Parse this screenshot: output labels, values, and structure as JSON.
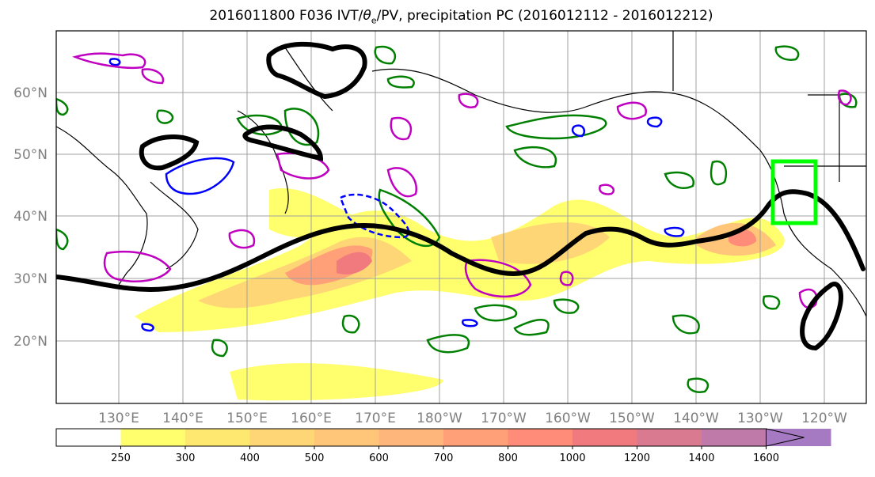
{
  "title_main": "2016011800 F036 IVT/",
  "title_theta": "θ",
  "title_sub_e": "e",
  "title_tail": "/PV, precipitation PC (2016012112 - 2016012212)",
  "lat_labels": [
    "60°N",
    "50°N",
    "40°N",
    "30°N",
    "20°N"
  ],
  "lon_labels": [
    "130°E",
    "140°E",
    "150°E",
    "160°E",
    "170°E",
    "180°W",
    "170°W",
    "160°W",
    "150°W",
    "140°W",
    "130°W",
    "120°W"
  ],
  "colorbar": {
    "ticks": [
      "250",
      "300",
      "400",
      "500",
      "600",
      "700",
      "800",
      "1000",
      "1200",
      "1400",
      "1600"
    ],
    "colors": [
      "#ffff6e",
      "#ffe870",
      "#ffd676",
      "#ffc67a",
      "#ffb67a",
      "#ffa078",
      "#ff8c78",
      "#f07a7e",
      "#d97a90",
      "#c07aaa",
      "#a67ac2"
    ]
  },
  "colors": {
    "coast": "#000000",
    "pv_contour": "#000000",
    "pos_anom": "#008000",
    "neg_anom": "#0000ff",
    "theta_e": "#c000c0",
    "box": "#00ff00",
    "grid": "#a0a0a0"
  }
}
